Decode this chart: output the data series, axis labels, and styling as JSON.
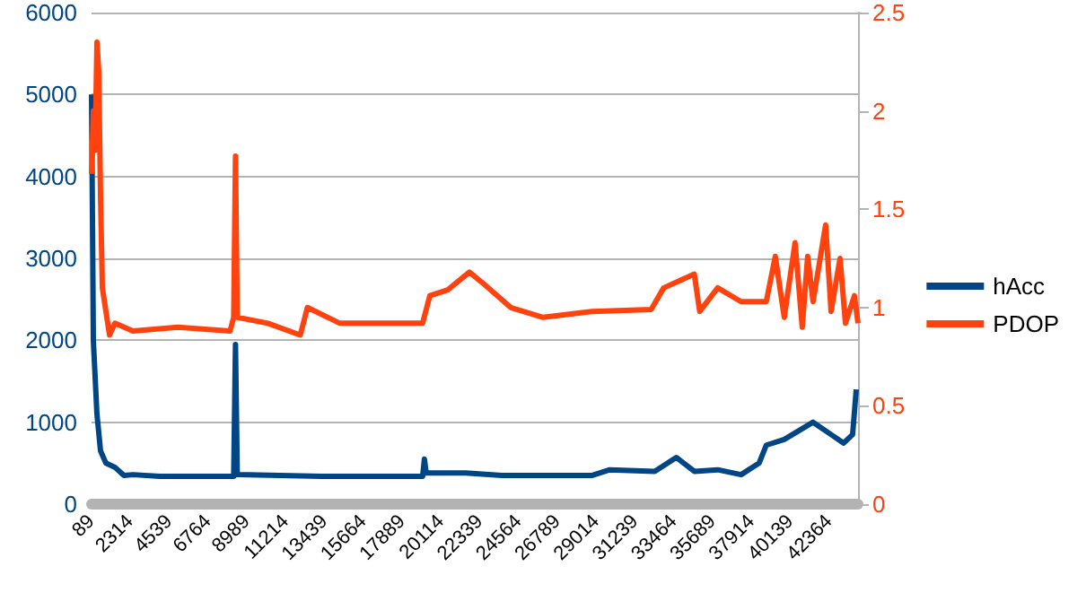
{
  "chart_data": {
    "type": "line",
    "legend": "right",
    "grid": "y",
    "marker": "none",
    "line_style": "solid",
    "xlim": [
      89,
      44010
    ],
    "xticks": [
      89,
      2314,
      4539,
      6764,
      8989,
      11214,
      13439,
      15664,
      17889,
      20114,
      22339,
      24564,
      26789,
      29014,
      31239,
      33464,
      35689,
      37914,
      40139,
      42364
    ],
    "ylim": [
      0,
      6000
    ],
    "yticks": [
      0,
      1000,
      2000,
      3000,
      4000,
      5000,
      6000
    ],
    "y2lim": [
      0,
      2.5
    ],
    "y2ticks": [
      0,
      0.5,
      1,
      1.5,
      2,
      2.5
    ],
    "series": [
      {
        "name": "hAcc",
        "color": "#004586",
        "x": [
          89,
          192,
          398,
          605,
          914,
          1429,
          1945,
          2460,
          4007,
          8131,
          8234,
          8337,
          8440,
          13286,
          19060,
          19163,
          19266,
          21534,
          23596,
          28751,
          29782,
          32360,
          33597,
          34628,
          35969,
          37309,
          38340,
          38752,
          39783,
          41433,
          42464,
          43186,
          43701,
          43907
        ],
        "values": [
          5000,
          2000,
          1100,
          650,
          500,
          450,
          350,
          360,
          340,
          340,
          340,
          1950,
          360,
          340,
          340,
          550,
          380,
          380,
          350,
          350,
          420,
          400,
          570,
          400,
          420,
          360,
          500,
          720,
          790,
          1000,
          850,
          745,
          850,
          1400
        ]
      },
      {
        "name": "PDOP",
        "color": "#ff420e",
        "axis": "y2",
        "x": [
          89,
          192,
          295,
          398,
          501,
          605,
          708,
          914,
          1120,
          1429,
          2460,
          5038,
          8028,
          8234,
          8337,
          8440,
          10193,
          12049,
          12461,
          14317,
          19060,
          19472,
          20503,
          21740,
          22565,
          24111,
          25967,
          28751,
          32154,
          32876,
          34628,
          34937,
          35969,
          37309,
          38752,
          39268,
          39783,
          40402,
          40814,
          41124,
          41433,
          42155,
          42464,
          42980,
          43289,
          43804,
          44010
        ],
        "values": [
          1.68,
          2.0,
          1.8,
          2.35,
          2.2,
          1.56,
          1.1,
          0.98,
          0.86,
          0.92,
          0.88,
          0.9,
          0.88,
          0.95,
          1.77,
          0.95,
          0.92,
          0.86,
          1.0,
          0.92,
          0.92,
          1.06,
          1.09,
          1.18,
          1.12,
          1.0,
          0.95,
          0.98,
          0.99,
          1.1,
          1.17,
          0.98,
          1.1,
          1.03,
          1.03,
          1.26,
          0.95,
          1.33,
          0.9,
          1.26,
          1.03,
          1.42,
          0.98,
          1.25,
          0.92,
          1.06,
          0.92
        ]
      }
    ]
  }
}
